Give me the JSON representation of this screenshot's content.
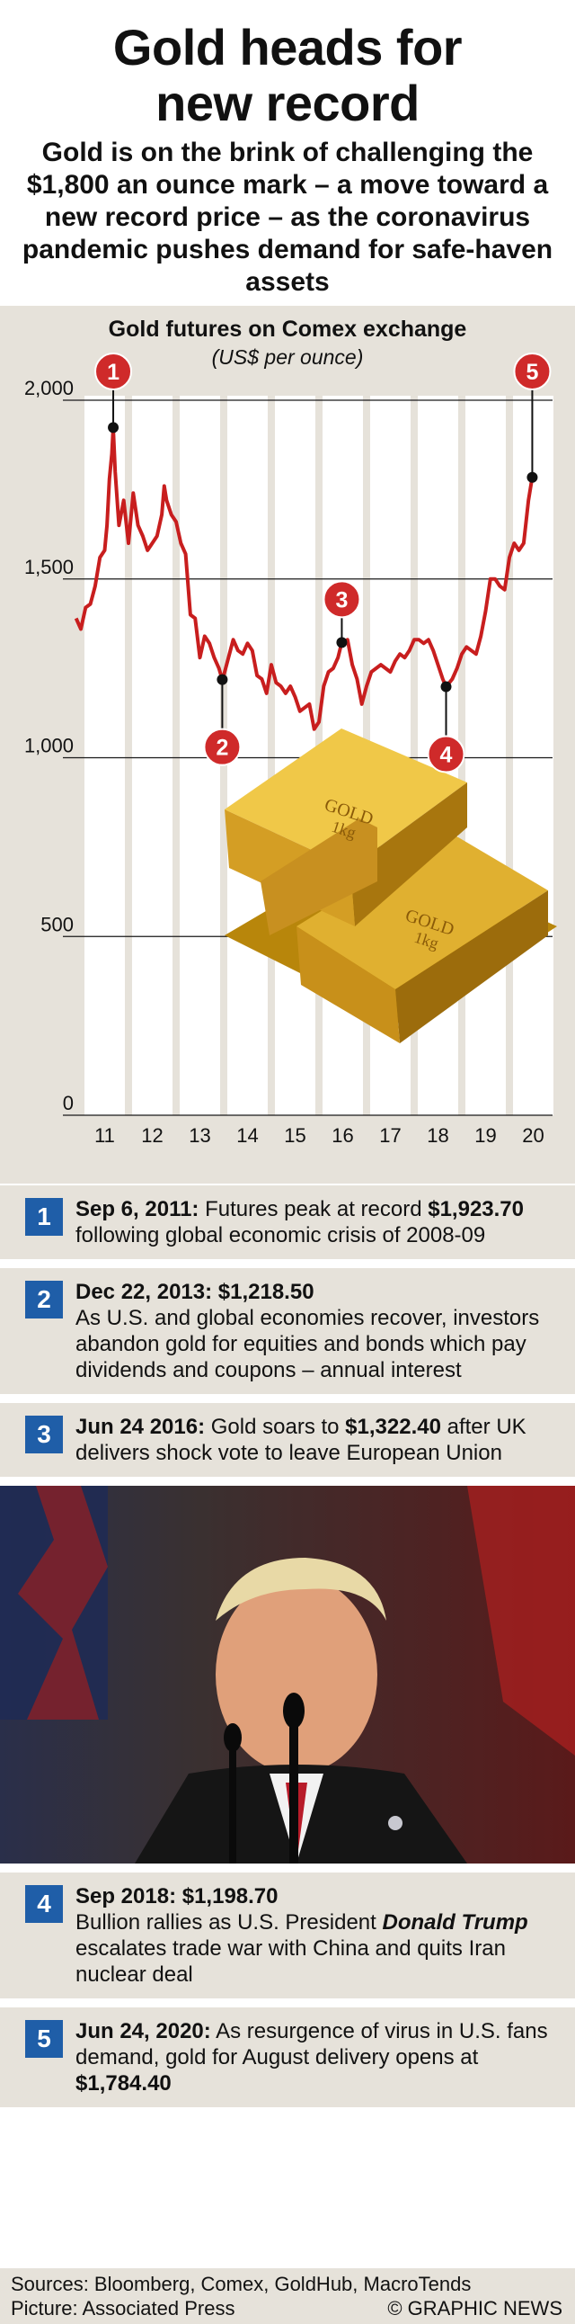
{
  "header": {
    "title_line1": "Gold heads for",
    "title_line2": "new record",
    "subtitle": "Gold is on the brink of challenging the $1,800 an ounce mark – a move toward a new record price – as the coronavirus pandemic pushes demand for safe-haven assets"
  },
  "chart_data": {
    "type": "line",
    "title": "Gold futures on Comex exchange",
    "unit": "(US$ per ounce)",
    "ylim": [
      0,
      2050
    ],
    "yticks": [
      "2,000",
      "1,500",
      "1,000",
      "500",
      "0"
    ],
    "ytick_values": [
      2000,
      1500,
      1000,
      500,
      0
    ],
    "xticks": [
      "11",
      "12",
      "13",
      "14",
      "15",
      "16",
      "17",
      "18",
      "19",
      "20"
    ],
    "series": [
      {
        "x": [
          2010.9,
          2011.0,
          2011.1,
          2011.2,
          2011.3,
          2011.4,
          2011.5,
          2011.55,
          2011.6,
          2011.65,
          2011.68,
          2011.72,
          2011.8,
          2011.9,
          2012.0,
          2012.1,
          2012.2,
          2012.3,
          2012.4,
          2012.5,
          2012.6,
          2012.7,
          2012.75,
          2012.8,
          2012.9,
          2013.0,
          2013.1,
          2013.2,
          2013.3,
          2013.4,
          2013.5,
          2013.6,
          2013.7,
          2013.8,
          2013.9,
          2013.97,
          2014.0,
          2014.1,
          2014.2,
          2014.3,
          2014.4,
          2014.5,
          2014.6,
          2014.7,
          2014.8,
          2014.9,
          2015.0,
          2015.1,
          2015.2,
          2015.3,
          2015.4,
          2015.5,
          2015.6,
          2015.7,
          2015.8,
          2015.9,
          2016.0,
          2016.1,
          2016.2,
          2016.3,
          2016.4,
          2016.48,
          2016.6,
          2016.7,
          2016.8,
          2016.9,
          2017.0,
          2017.1,
          2017.2,
          2017.3,
          2017.4,
          2017.5,
          2017.6,
          2017.7,
          2017.8,
          2017.9,
          2018.0,
          2018.1,
          2018.2,
          2018.3,
          2018.4,
          2018.5,
          2018.6,
          2018.67,
          2018.8,
          2018.9,
          2019.0,
          2019.1,
          2019.2,
          2019.3,
          2019.4,
          2019.5,
          2019.6,
          2019.7,
          2019.8,
          2019.9,
          2020.0,
          2020.1,
          2020.2,
          2020.3,
          2020.4,
          2020.48
        ],
        "y": [
          1390,
          1360,
          1420,
          1430,
          1480,
          1560,
          1580,
          1650,
          1780,
          1850,
          1923.7,
          1800,
          1650,
          1720,
          1600,
          1740,
          1650,
          1620,
          1580,
          1600,
          1620,
          1680,
          1760,
          1720,
          1680,
          1660,
          1600,
          1570,
          1400,
          1390,
          1280,
          1340,
          1320,
          1280,
          1250,
          1218.5,
          1230,
          1280,
          1330,
          1300,
          1290,
          1320,
          1300,
          1230,
          1220,
          1180,
          1260,
          1210,
          1200,
          1180,
          1200,
          1170,
          1130,
          1140,
          1150,
          1080,
          1100,
          1200,
          1240,
          1250,
          1280,
          1322.4,
          1330,
          1260,
          1220,
          1150,
          1200,
          1240,
          1250,
          1260,
          1250,
          1240,
          1270,
          1290,
          1280,
          1300,
          1330,
          1330,
          1320,
          1330,
          1300,
          1260,
          1220,
          1198.7,
          1220,
          1250,
          1290,
          1310,
          1300,
          1290,
          1340,
          1410,
          1500,
          1500,
          1480,
          1470,
          1560,
          1600,
          1580,
          1600,
          1720,
          1784.4
        ]
      }
    ],
    "markers": [
      {
        "label": "1",
        "x": 2011.68,
        "y": 1923.7
      },
      {
        "label": "2",
        "x": 2013.97,
        "y": 1218.5
      },
      {
        "label": "3",
        "x": 2016.48,
        "y": 1322.4
      },
      {
        "label": "4",
        "x": 2018.67,
        "y": 1198.7
      },
      {
        "label": "5",
        "x": 2020.48,
        "y": 1784.4
      }
    ],
    "grid": true,
    "colors": {
      "line": "#c81e1e",
      "marker": "#cf2a2a",
      "stripe": "#ffffff",
      "panel": "#e6e2da"
    }
  },
  "gold_bar": {
    "text_left": "GOLD",
    "text_left_sub": "1kg",
    "text_right": "GOLD",
    "text_right_sub": "1kg"
  },
  "events": [
    {
      "num": "1",
      "date": "Sep 6, 2011:",
      "pre": " Futures peak at record ",
      "strong": "$1,923.70",
      "post": " following global economic crisis of 2008-09"
    },
    {
      "num": "2",
      "date": "Dec 22, 2013: $1,218.50",
      "pre": "",
      "strong": "",
      "post": "As U.S. and global economies recover, investors abandon gold for equities and bonds which pay dividends and coupons – annual interest"
    },
    {
      "num": "3",
      "date": "Jun 24 2016:",
      "pre": " Gold soars to ",
      "strong": "$1,322.40",
      "post": " after UK delivers shock vote to leave European Union"
    },
    {
      "num": "4",
      "date": "Sep 2018: $1,198.70",
      "pre": "Bullion rallies as U.S. President ",
      "strong": "Donald Trump",
      "post": " escalates trade war with China and quits Iran nuclear deal"
    },
    {
      "num": "5",
      "date": "Jun 24, 2020:",
      "pre": " As resurgence of virus in U.S. fans demand, gold for August delivery opens at ",
      "strong": "$1,784.40",
      "post": ""
    }
  ],
  "footer": {
    "sources": "Sources: Bloomberg, Comex, GoldHub, MacroTends",
    "picture": "Picture: Associated Press",
    "credit": "© GRAPHIC NEWS"
  }
}
